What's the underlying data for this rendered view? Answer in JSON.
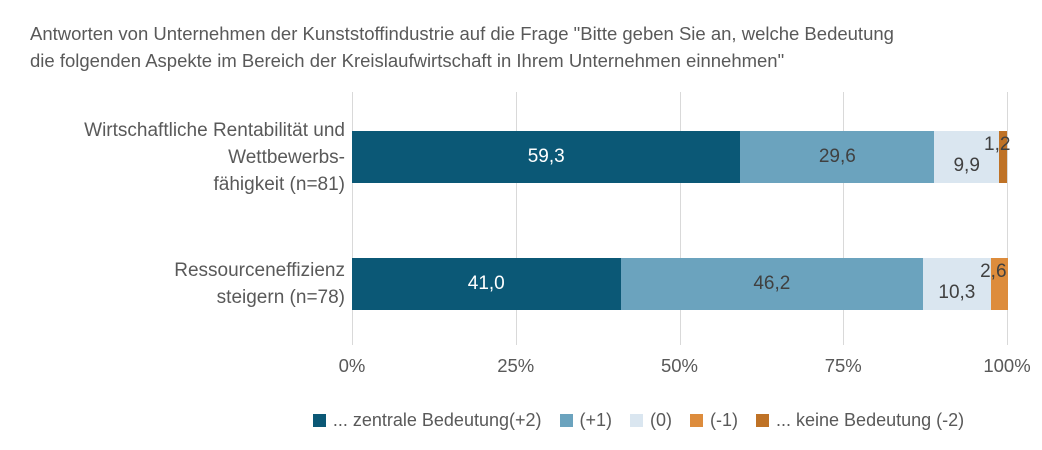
{
  "title": {
    "lines": [
      "Antworten von Unternehmen der Kunststoffindustrie auf die Frage \"Bitte geben Sie an, welche Bedeutung",
      "die folgenden Aspekte im Bereich der Kreislaufwirtschaft in Ihrem Unternehmen einnehmen\""
    ]
  },
  "chart_data": {
    "type": "bar",
    "orientation": "horizontal",
    "stacked": true,
    "title": "Antworten von Unternehmen der Kunststoffindustrie auf die Frage \"Bitte geben Sie an, welche Bedeutung die folgenden Aspekte im Bereich der Kreislaufwirtschaft in Ihrem Unternehmen einnehmen\"",
    "categories": [
      {
        "label": "Wirtschaftliche Rentabilität und Wettbewerbsfähigkeit (n=81)",
        "lines": [
          "Wirtschaftliche Rentabilität und",
          "Wettbewerbs-",
          "fähigkeit (n=81)"
        ]
      },
      {
        "label": "Ressourceneffizienz steigern (n=78)",
        "lines": [
          "Ressourceneffizienz",
          "steigern (n=78)"
        ]
      }
    ],
    "series": [
      {
        "name": "... zentrale Bedeutung(+2)",
        "color": "#0b5876",
        "values": [
          59.3,
          41.0
        ]
      },
      {
        "name": "(+1)",
        "color": "#6ba3be",
        "values": [
          29.6,
          46.2
        ]
      },
      {
        "name": "(0)",
        "color": "#dae6f0",
        "values": [
          9.9,
          10.3
        ]
      },
      {
        "name": "(-1)",
        "color": "#dd8c3c",
        "values": [
          0,
          2.6
        ]
      },
      {
        "name": "... keine Bedeutung (-2)",
        "color": "#bf7226",
        "values": [
          1.2,
          0
        ]
      }
    ],
    "value_labels": [
      [
        "59,3",
        "29,6",
        "9,9",
        "1,2"
      ],
      [
        "41,0",
        "46,2",
        "10,3",
        "2,6"
      ]
    ],
    "xlim": [
      0,
      100
    ],
    "x_ticks": [
      "0%",
      "25%",
      "50%",
      "75%",
      "100%"
    ],
    "grid": "vertical",
    "legend_position": "bottom"
  },
  "colors": {
    "background": "#ffffff",
    "grid": "#d9d9d9",
    "text": "#595959",
    "value_label_dark": "#404040",
    "value_label_light": "#ffffff"
  }
}
